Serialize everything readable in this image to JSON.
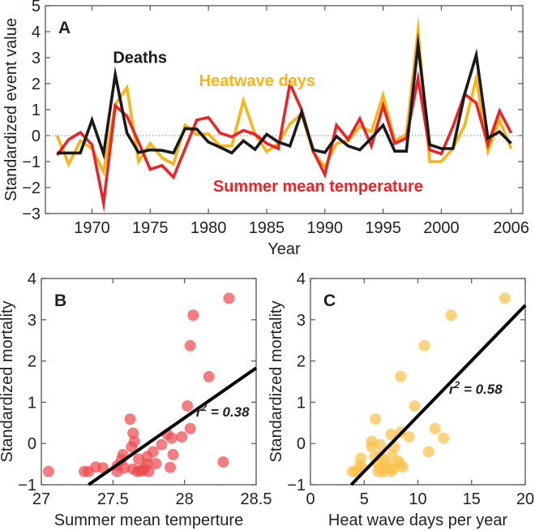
{
  "chart_data": [
    {
      "panel": "A",
      "type": "line",
      "panel_label": "A",
      "xlabel": "Year",
      "ylabel": "Standardized event value",
      "xlim": [
        1966,
        2007
      ],
      "ylim": [
        -3,
        5
      ],
      "xticks": [
        1970,
        1975,
        1980,
        1985,
        1990,
        1995,
        2000,
        2006
      ],
      "yticks": [
        -3,
        -2,
        -1,
        0,
        1,
        2,
        3,
        4,
        5
      ],
      "reference_line": {
        "y": 0,
        "style": "dotted"
      },
      "x": [
        1967,
        1968,
        1969,
        1970,
        1971,
        1972,
        1973,
        1974,
        1975,
        1976,
        1977,
        1978,
        1979,
        1980,
        1981,
        1982,
        1983,
        1984,
        1985,
        1986,
        1987,
        1988,
        1989,
        1990,
        1991,
        1992,
        1993,
        1994,
        1995,
        1996,
        1997,
        1998,
        1999,
        2000,
        2001,
        2002,
        2003,
        2004,
        2005,
        2006
      ],
      "series": [
        {
          "name": "Heatwave days",
          "color": "#f7b519",
          "values": [
            0,
            -1.1,
            -0.2,
            -0.5,
            -1.4,
            1.2,
            1.85,
            -1.0,
            -0.3,
            -0.85,
            -1.1,
            0.4,
            0.05,
            0.07,
            -0.4,
            -0.4,
            1.35,
            0.05,
            -0.62,
            -0.3,
            0.45,
            0.85,
            -0.65,
            -1.2,
            -0.3,
            -0.2,
            0.35,
            0.15,
            1.55,
            -0.2,
            0.05,
            4.05,
            -1.0,
            -1.0,
            -0.5,
            0.4,
            2.2,
            -0.6,
            0.6,
            -0.5
          ]
        },
        {
          "name": "Summer mean temperature",
          "color": "#e8262a",
          "values": [
            -0.75,
            -0.15,
            0.12,
            -0.35,
            -2.6,
            1.15,
            0.75,
            -0.25,
            -1.3,
            -1.15,
            -1.6,
            -0.5,
            0.6,
            0.7,
            0.1,
            -0.05,
            0.2,
            0.05,
            -0.3,
            -0.5,
            2.0,
            1.0,
            -0.6,
            -1.5,
            0.4,
            -0.15,
            0.65,
            -0.4,
            1.15,
            -0.3,
            -0.1,
            2.2,
            -0.55,
            -0.7,
            0.35,
            1.6,
            1.25,
            -0.35,
            0.95,
            0.1
          ]
        },
        {
          "name": "Deaths",
          "color": "#1a1a1a",
          "values": [
            -0.67,
            -0.67,
            -0.67,
            0.6,
            -0.7,
            2.35,
            0.1,
            -0.65,
            -0.55,
            -0.57,
            -0.67,
            0.27,
            0.25,
            -0.25,
            -0.45,
            -0.67,
            -0.2,
            -0.53,
            0.05,
            -0.25,
            -0.4,
            0.9,
            -0.55,
            -0.65,
            -0.03,
            -0.4,
            -0.55,
            -0.1,
            0.4,
            -0.6,
            -0.6,
            3.5,
            -0.35,
            -0.5,
            -0.5,
            1.6,
            3.1,
            -0.1,
            0.15,
            -0.3
          ]
        }
      ],
      "annotations": [
        {
          "text": "Deaths",
          "color": "#1a1a1a",
          "x": 1971.8,
          "y": 2.8
        },
        {
          "text": "Heatwave days",
          "color": "#f7b519",
          "x": 1979.2,
          "y": 1.9
        },
        {
          "text": "Summer mean temperature",
          "color": "#e8262a",
          "x": 1980.4,
          "y": -2.15
        }
      ]
    },
    {
      "panel": "B",
      "type": "scatter",
      "panel_label": "B",
      "xlabel": "Summer mean temperture",
      "ylabel": "Standardized mortality",
      "xlim": [
        27,
        28.5
      ],
      "ylim": [
        -1,
        4
      ],
      "xticks": [
        27,
        27.5,
        28,
        28.5
      ],
      "yticks": [
        -1,
        0,
        1,
        2,
        3,
        4
      ],
      "point_color": "#ef4b4f",
      "points": [
        [
          28.31,
          3.52
        ],
        [
          28.06,
          3.11
        ],
        [
          28.04,
          2.37
        ],
        [
          28.17,
          1.62
        ],
        [
          28.02,
          0.91
        ],
        [
          28.04,
          0.36
        ],
        [
          27.62,
          0.59
        ],
        [
          27.64,
          0.25
        ],
        [
          27.65,
          0.05
        ],
        [
          27.63,
          -0.08
        ],
        [
          27.88,
          0.22
        ],
        [
          27.91,
          0.13
        ],
        [
          27.98,
          0.16
        ],
        [
          27.84,
          -0.03
        ],
        [
          27.92,
          -0.27
        ],
        [
          27.78,
          -0.2
        ],
        [
          27.57,
          -0.27
        ],
        [
          27.56,
          -0.39
        ],
        [
          27.74,
          -0.32
        ],
        [
          27.68,
          -0.38
        ],
        [
          27.74,
          -0.5
        ],
        [
          27.8,
          -0.49
        ],
        [
          27.9,
          -0.58
        ],
        [
          28.27,
          -0.45
        ],
        [
          27.53,
          -0.54
        ],
        [
          27.58,
          -0.59
        ],
        [
          27.64,
          -0.62
        ],
        [
          27.69,
          -0.66
        ],
        [
          27.71,
          -0.66
        ],
        [
          27.75,
          -0.68
        ],
        [
          27.53,
          -0.68
        ],
        [
          27.43,
          -0.59
        ],
        [
          27.38,
          -0.57
        ],
        [
          27.33,
          -0.68
        ],
        [
          27.3,
          -0.68
        ],
        [
          27.05,
          -0.68
        ],
        [
          27.67,
          -0.68
        ],
        [
          27.72,
          -0.6
        ]
      ],
      "fit_line": {
        "x": [
          27.33,
          28.5
        ],
        "y": [
          -1,
          1.83
        ]
      },
      "r2_label": "r² = 0.38",
      "r2_position": {
        "x": 28.08,
        "y": 0.65
      }
    },
    {
      "panel": "C",
      "type": "scatter",
      "panel_label": "C",
      "xlabel": "Heat wave days per year",
      "ylabel": "Standardized mortality",
      "xlim": [
        0,
        20
      ],
      "ylim": [
        -1,
        4
      ],
      "xticks": [
        0,
        5,
        10,
        15,
        20
      ],
      "yticks": [
        -1,
        0,
        1,
        2,
        3,
        4
      ],
      "point_color": "#fbc24a",
      "points": [
        [
          18.1,
          3.52
        ],
        [
          13.1,
          3.11
        ],
        [
          10.6,
          2.37
        ],
        [
          8.4,
          1.62
        ],
        [
          9.7,
          0.91
        ],
        [
          6.05,
          0.59
        ],
        [
          11.6,
          0.36
        ],
        [
          12.4,
          0.13
        ],
        [
          11.0,
          -0.2
        ],
        [
          9.2,
          0.16
        ],
        [
          7.5,
          0.22
        ],
        [
          8.4,
          0.27
        ],
        [
          5.7,
          0.05
        ],
        [
          5.7,
          -0.08
        ],
        [
          6.5,
          -0.03
        ],
        [
          7.8,
          -0.08
        ],
        [
          7.6,
          -0.27
        ],
        [
          6.0,
          -0.32
        ],
        [
          6.5,
          -0.3
        ],
        [
          4.7,
          -0.36
        ],
        [
          6.8,
          -0.4
        ],
        [
          8.2,
          -0.43
        ],
        [
          8.3,
          -0.5
        ],
        [
          8.6,
          -0.57
        ],
        [
          6.3,
          -0.51
        ],
        [
          6.8,
          -0.59
        ],
        [
          7.7,
          -0.62
        ],
        [
          7.5,
          -0.68
        ],
        [
          4.8,
          -0.59
        ],
        [
          4.5,
          -0.68
        ],
        [
          3.9,
          -0.68
        ],
        [
          4.2,
          -0.69
        ],
        [
          6.3,
          -0.68
        ],
        [
          6.7,
          -0.69
        ],
        [
          7.0,
          -0.6
        ],
        [
          4.6,
          -0.52
        ],
        [
          6.5,
          -0.59
        ],
        [
          7.3,
          -0.52
        ]
      ],
      "fit_line": {
        "x": [
          3.8,
          20
        ],
        "y": [
          -1,
          3.35
        ]
      },
      "r2_label": "r² = 0.58",
      "r2_position": {
        "x": 12.9,
        "y": 1.2
      }
    }
  ]
}
